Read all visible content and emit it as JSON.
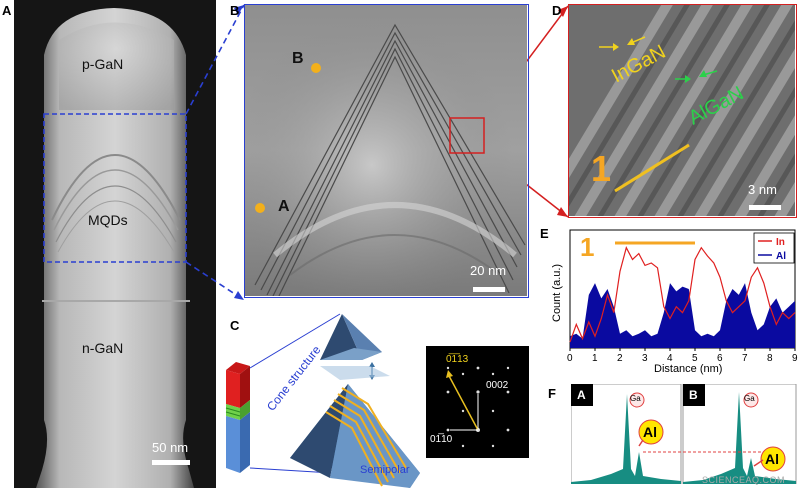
{
  "panels": {
    "A": {
      "label": "A",
      "text_pgan": "p-GaN",
      "text_mqds": "MQDs",
      "text_ngan": "n-GaN",
      "scale": "50 nm"
    },
    "B": {
      "label": "B",
      "point_a": "A",
      "point_b": "B",
      "scale": "20 nm"
    },
    "C": {
      "label": "C",
      "cone_text": "Cone structure",
      "semipolar_text": "Semipolar",
      "diff_0113": "0̅1̅13",
      "diff_0002": "0002",
      "diff_0110": "01̅10"
    },
    "D": {
      "label": "D",
      "ingan": "InGaN",
      "algan": "AlGaN",
      "line_mark": "1",
      "scale": "3 nm"
    },
    "E": {
      "label": "E",
      "mark": "1",
      "legend_in": "In",
      "legend_al": "Al",
      "colors": {
        "in": "#e02020",
        "al": "#0a0aa0",
        "mark": "#f5a623"
      }
    },
    "F": {
      "label": "F",
      "sub_a": "A",
      "sub_b": "B",
      "ga": "Ga",
      "al": "Al"
    }
  },
  "chart_data": {
    "type": "line",
    "title": "",
    "xlabel": "Distance (nm)",
    "ylabel": "Count (a.u.)",
    "xlim": [
      0,
      9
    ],
    "x_ticks": [
      "0",
      "1",
      "2",
      "3",
      "4",
      "5",
      "6",
      "7",
      "8",
      "9"
    ],
    "legend_placement": "top-right",
    "series": [
      {
        "name": "In",
        "color": "#e02020",
        "x": [
          0,
          0.25,
          0.5,
          0.75,
          1,
          1.25,
          1.5,
          1.75,
          2,
          2.25,
          2.5,
          2.75,
          3,
          3.25,
          3.5,
          3.75,
          4,
          4.25,
          4.5,
          4.75,
          5,
          5.25,
          5.5,
          5.75,
          6,
          6.25,
          6.5,
          6.75,
          7,
          7.25,
          7.5,
          7.75,
          8,
          8.25,
          8.5,
          8.75,
          9
        ],
        "y": [
          0.05,
          0.2,
          0.08,
          0.22,
          0.1,
          0.25,
          0.45,
          0.3,
          0.65,
          0.85,
          0.75,
          0.8,
          0.7,
          0.72,
          0.68,
          0.35,
          0.25,
          0.35,
          0.3,
          0.4,
          0.75,
          0.85,
          0.78,
          0.72,
          0.6,
          0.4,
          0.3,
          0.35,
          0.4,
          0.6,
          0.68,
          0.55,
          0.35,
          0.2,
          0.3,
          0.25,
          0.3
        ]
      },
      {
        "name": "Al",
        "color": "#0a0aa0",
        "x": [
          0,
          0.25,
          0.5,
          0.75,
          1,
          1.25,
          1.5,
          1.75,
          2,
          2.25,
          2.5,
          2.75,
          3,
          3.25,
          3.5,
          3.75,
          4,
          4.25,
          4.5,
          4.75,
          5,
          5.25,
          5.5,
          5.75,
          6,
          6.25,
          6.5,
          6.75,
          7,
          7.25,
          7.5,
          7.75,
          8,
          8.25,
          8.5,
          8.75,
          9
        ],
        "y": [
          0.1,
          0.12,
          0.08,
          0.45,
          0.55,
          0.42,
          0.5,
          0.35,
          0.12,
          0.15,
          0.1,
          0.12,
          0.15,
          0.1,
          0.12,
          0.3,
          0.55,
          0.48,
          0.52,
          0.5,
          0.15,
          0.1,
          0.12,
          0.1,
          0.15,
          0.4,
          0.5,
          0.45,
          0.55,
          0.3,
          0.15,
          0.2,
          0.35,
          0.42,
          0.3,
          0.35,
          0.4
        ]
      }
    ]
  },
  "footer": {
    "watermark": "SCIENCEAQ.COM"
  }
}
